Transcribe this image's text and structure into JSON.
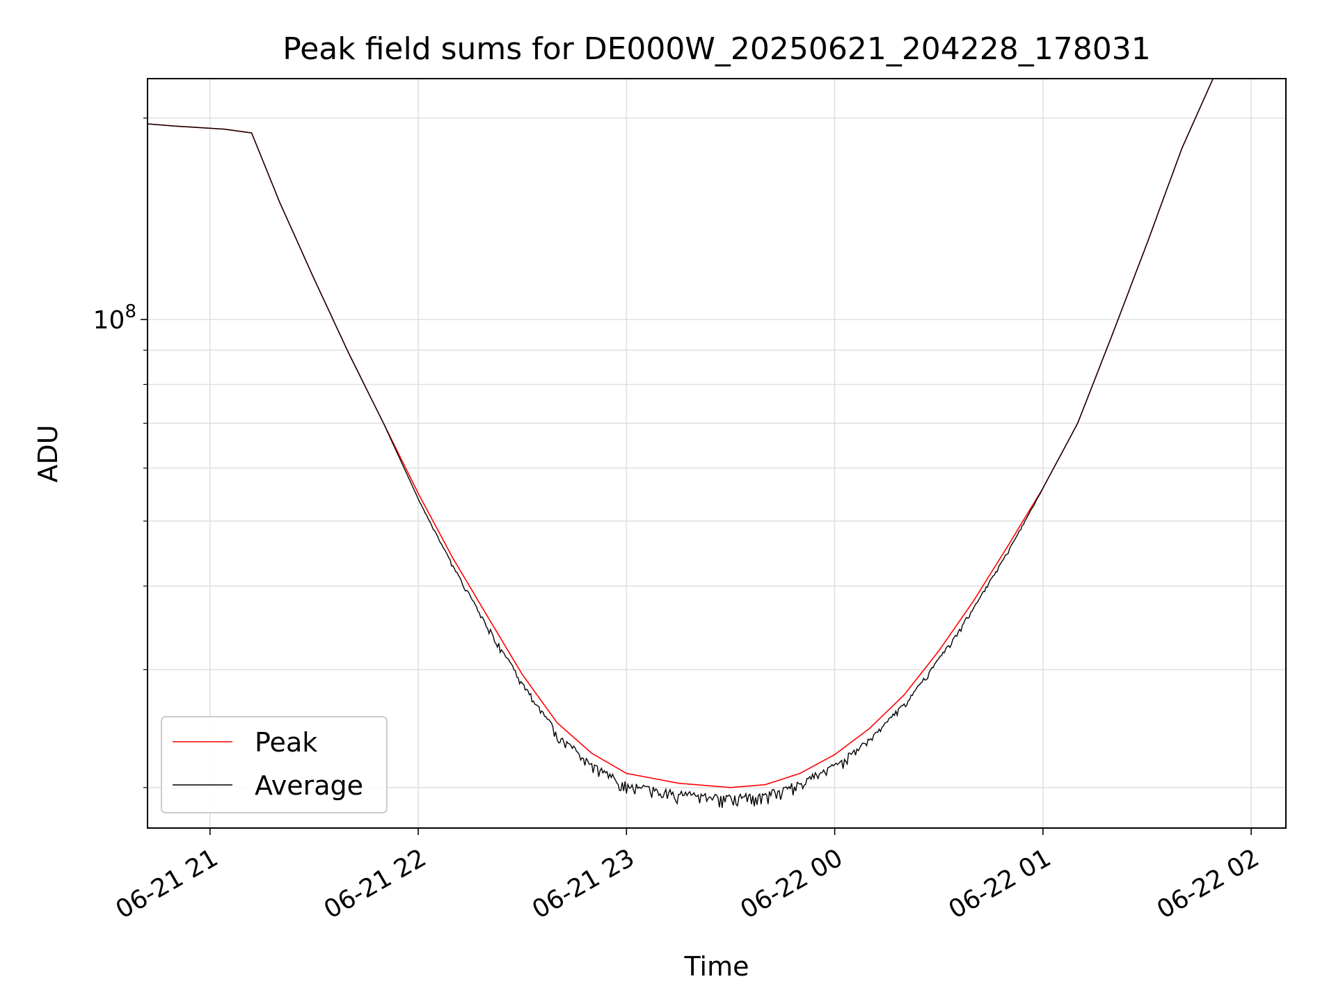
{
  "chart_data": {
    "type": "line",
    "title": "Peak field sums for DE000W_20250621_204228_178031",
    "xlabel": "Time",
    "ylabel": "ADU",
    "yscale": "log",
    "grid": true,
    "legend_position": "lower-left",
    "xlim": [
      "2025-06-21 20:42",
      "2025-06-22 02:10"
    ],
    "ylim": [
      17400000,
      229000000
    ],
    "x_ticks": [
      {
        "t": "2025-06-21 21:00",
        "label": "06-21 21"
      },
      {
        "t": "2025-06-21 22:00",
        "label": "06-21 22"
      },
      {
        "t": "2025-06-21 23:00",
        "label": "06-21 23"
      },
      {
        "t": "2025-06-22 00:00",
        "label": "06-22 00"
      },
      {
        "t": "2025-06-22 01:00",
        "label": "06-22 01"
      },
      {
        "t": "2025-06-22 02:00",
        "label": "06-22 02"
      }
    ],
    "y_major_ticks": [
      {
        "value": 100000000,
        "base": "10",
        "exp": "8"
      }
    ],
    "y_minor_ticks": [
      20000000,
      30000000,
      40000000,
      50000000,
      60000000,
      70000000,
      80000000,
      90000000,
      200000000
    ],
    "series": [
      {
        "name": "Peak",
        "color": "#ff0000",
        "points": [
          [
            "2025-06-21 20:42",
            196000000
          ],
          [
            "2025-06-21 20:50",
            194500000
          ],
          [
            "2025-06-21 21:04",
            192500000
          ],
          [
            "2025-06-21 21:12",
            190000000
          ],
          [
            "2025-06-21 21:20",
            150000000
          ],
          [
            "2025-06-21 21:30",
            115000000
          ],
          [
            "2025-06-21 21:40",
            89000000
          ],
          [
            "2025-06-21 21:50",
            70000000
          ],
          [
            "2025-06-21 22:00",
            55000000
          ],
          [
            "2025-06-21 22:10",
            44000000
          ],
          [
            "2025-06-21 22:20",
            36000000
          ],
          [
            "2025-06-21 22:30",
            29500000
          ],
          [
            "2025-06-21 22:40",
            25000000
          ],
          [
            "2025-06-21 22:50",
            22500000
          ],
          [
            "2025-06-21 23:00",
            21000000
          ],
          [
            "2025-06-21 23:15",
            20300000
          ],
          [
            "2025-06-21 23:30",
            20000000
          ],
          [
            "2025-06-21 23:40",
            20200000
          ],
          [
            "2025-06-21 23:50",
            21000000
          ],
          [
            "2025-06-22 00:00",
            22400000
          ],
          [
            "2025-06-22 00:10",
            24500000
          ],
          [
            "2025-06-22 00:20",
            27500000
          ],
          [
            "2025-06-22 00:30",
            32000000
          ],
          [
            "2025-06-22 00:40",
            38000000
          ],
          [
            "2025-06-22 00:50",
            46000000
          ],
          [
            "2025-06-22 01:00",
            56000000
          ],
          [
            "2025-06-22 01:10",
            70000000
          ],
          [
            "2025-06-22 01:20",
            95000000
          ],
          [
            "2025-06-22 01:30",
            130000000
          ],
          [
            "2025-06-22 01:40",
            180000000
          ],
          [
            "2025-06-22 01:49",
            229000000
          ],
          [
            "2025-06-22 01:57",
            229000000
          ]
        ]
      },
      {
        "name": "Average",
        "color": "#000000",
        "points": [
          [
            "2025-06-21 20:42",
            196000000
          ],
          [
            "2025-06-21 20:50",
            194500000
          ],
          [
            "2025-06-21 21:04",
            192500000
          ],
          [
            "2025-06-21 21:12",
            190000000
          ],
          [
            "2025-06-21 21:20",
            150000000
          ],
          [
            "2025-06-21 21:30",
            115000000
          ],
          [
            "2025-06-21 21:40",
            89000000
          ],
          [
            "2025-06-21 21:50",
            70000000
          ],
          [
            "2025-06-21 22:00",
            54000000
          ],
          [
            "2025-06-21 22:10",
            43000000
          ],
          [
            "2025-06-21 22:20",
            35000000
          ],
          [
            "2025-06-21 22:30",
            28800000
          ],
          [
            "2025-06-21 22:40",
            24300000
          ],
          [
            "2025-06-21 22:50",
            21800000
          ],
          [
            "2025-06-21 23:00",
            20400000
          ],
          [
            "2025-06-21 23:15",
            19800000
          ],
          [
            "2025-06-21 23:30",
            19500000
          ],
          [
            "2025-06-21 23:40",
            19700000
          ],
          [
            "2025-06-21 23:50",
            20500000
          ],
          [
            "2025-06-22 00:00",
            21800000
          ],
          [
            "2025-06-22 00:10",
            23800000
          ],
          [
            "2025-06-22 00:20",
            26800000
          ],
          [
            "2025-06-22 00:30",
            31200000
          ],
          [
            "2025-06-22 00:40",
            37200000
          ],
          [
            "2025-06-22 00:50",
            45200000
          ],
          [
            "2025-06-22 01:00",
            56000000
          ],
          [
            "2025-06-22 01:10",
            70000000
          ],
          [
            "2025-06-22 01:20",
            95000000
          ],
          [
            "2025-06-22 01:30",
            130000000
          ],
          [
            "2025-06-22 01:40",
            180000000
          ],
          [
            "2025-06-22 01:49",
            229000000
          ],
          [
            "2025-06-22 01:57",
            229000000
          ]
        ]
      }
    ]
  }
}
